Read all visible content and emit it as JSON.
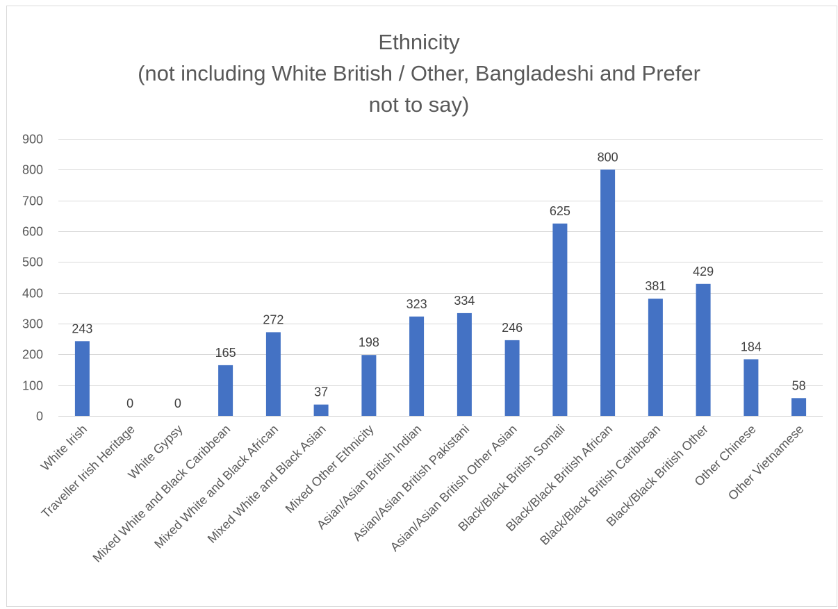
{
  "chart_data": {
    "type": "bar",
    "title_lines": [
      "Ethnicity",
      "(not including White British / Other, Bangladeshi and Prefer",
      "not to say)"
    ],
    "categories": [
      "White Irish",
      "Traveller Irish Heritage",
      "White Gypsy",
      "Mixed White and Black Caribbean",
      "Mixed White and Black African",
      "Mixed White and Black Asian",
      "Mixed Other Ethnicity",
      "Asian/Asian British Indian",
      "Asian/Asian British Pakistani",
      "Asian/Asian British Other Asian",
      "Black/Black British Somali",
      "Black/Black British African",
      "Black/Black British Caribbean",
      "Black/Black British Other",
      "Other Chinese",
      "Other Vietnamese"
    ],
    "values": [
      243,
      0,
      0,
      165,
      272,
      37,
      198,
      323,
      334,
      246,
      625,
      800,
      381,
      429,
      184,
      58
    ],
    "ylim": [
      0,
      900
    ],
    "yticks": [
      0,
      100,
      200,
      300,
      400,
      500,
      600,
      700,
      800,
      900
    ],
    "grid": true,
    "legend": "none",
    "bar_color": "#4472c4",
    "gridline_color": "#d9d9d9",
    "text_color": "#595959"
  }
}
